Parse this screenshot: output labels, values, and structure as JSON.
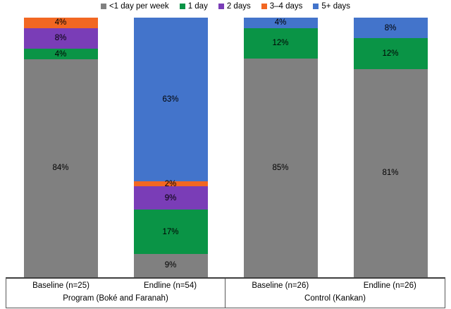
{
  "chart_data": {
    "type": "bar",
    "stacked": true,
    "percent_stacked": true,
    "unit": "%",
    "title": "",
    "xlabel": "",
    "ylabel": "",
    "ylim": [
      0,
      100
    ],
    "grid": false,
    "legend_position": "top-center",
    "legend": [
      {
        "label": "<1 day per week",
        "color": "#808080"
      },
      {
        "label": "1 day",
        "color": "#0A9446"
      },
      {
        "label": "2 days",
        "color": "#7A3DB7"
      },
      {
        "label": "3–4 days",
        "color": "#F26722"
      },
      {
        "label": "5+ days",
        "color": "#4374CB"
      }
    ],
    "groups": [
      {
        "label": "Program (Boké and Faranah)",
        "bars": [
          {
            "category": "Baseline (n=25)",
            "segments": [
              {
                "series": "<1 day per week",
                "value": 84,
                "label": "84%"
              },
              {
                "series": "1 day",
                "value": 4,
                "label": "4%"
              },
              {
                "series": "2 days",
                "value": 8,
                "label": "8%"
              },
              {
                "series": "3–4 days",
                "value": 4,
                "label": "4%"
              }
            ]
          },
          {
            "category": "Endline (n=54)",
            "segments": [
              {
                "series": "<1 day per week",
                "value": 9,
                "label": "9%"
              },
              {
                "series": "1 day",
                "value": 17,
                "label": "17%"
              },
              {
                "series": "2 days",
                "value": 9,
                "label": "9%"
              },
              {
                "series": "3–4 days",
                "value": 2,
                "label": "2%"
              },
              {
                "series": "5+ days",
                "value": 63,
                "label": "63%"
              }
            ]
          }
        ]
      },
      {
        "label": "Control (Kankan)",
        "bars": [
          {
            "category": "Baseline (n=26)",
            "segments": [
              {
                "series": "<1 day per week",
                "value": 85,
                "label": "85%"
              },
              {
                "series": "1 day",
                "value": 12,
                "label": "12%"
              },
              {
                "series": "5+ days",
                "value": 4,
                "label": "4%"
              }
            ]
          },
          {
            "category": "Endline (n=26)",
            "segments": [
              {
                "series": "<1 day per week",
                "value": 81,
                "label": "81%"
              },
              {
                "series": "1 day",
                "value": 12,
                "label": "12%"
              },
              {
                "series": "5+ days",
                "value": 8,
                "label": "8%"
              }
            ]
          }
        ]
      }
    ]
  }
}
